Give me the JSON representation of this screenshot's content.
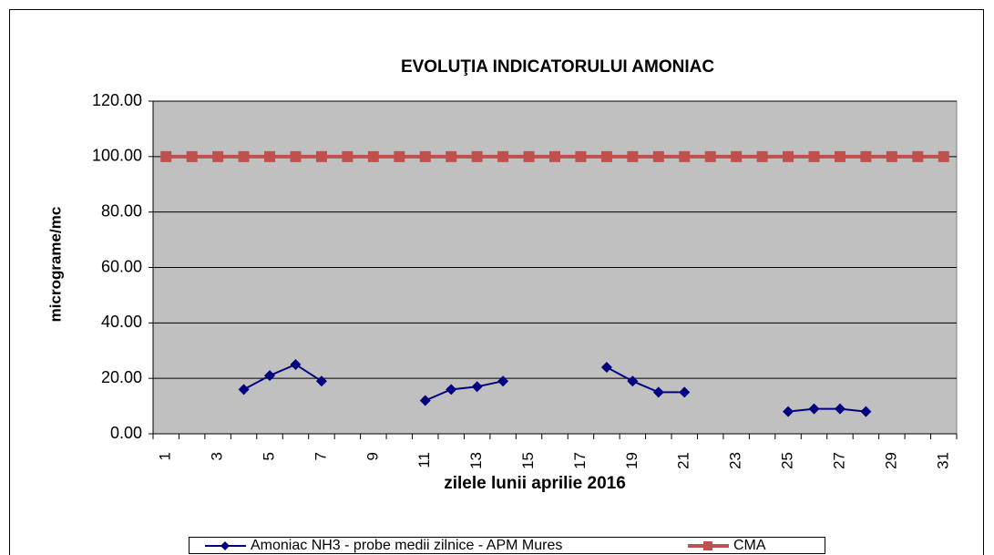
{
  "chart_data": {
    "type": "line",
    "title": "EVOLUŢIA INDICATORULUI AMONIAC",
    "x_label": "zilele lunii aprilie 2016",
    "y_label": "micrograme/mc",
    "categories": [
      "1",
      null,
      "3",
      null,
      "5",
      null,
      "7",
      null,
      "9",
      null,
      "11",
      null,
      "13",
      null,
      "15",
      null,
      "17",
      null,
      "19",
      null,
      "21",
      null,
      "23",
      null,
      "25",
      null,
      "27",
      null,
      "29",
      null,
      "31"
    ],
    "series": [
      {
        "name": "Amoniac NH3 - probe medii zilnice - APM Mures",
        "color": "#000080",
        "marker": "diamond",
        "values": [
          null,
          null,
          null,
          16,
          21,
          25,
          19,
          null,
          null,
          null,
          12,
          16,
          17,
          19,
          null,
          null,
          null,
          24,
          19,
          15,
          15,
          null,
          null,
          null,
          8,
          9,
          9,
          8,
          null,
          null,
          null
        ]
      },
      {
        "name": "CMA",
        "color": "#c0504d",
        "marker": "square",
        "values": [
          100,
          100,
          100,
          100,
          100,
          100,
          100,
          100,
          100,
          100,
          100,
          100,
          100,
          100,
          100,
          100,
          100,
          100,
          100,
          100,
          100,
          100,
          100,
          100,
          100,
          100,
          100,
          100,
          100,
          100,
          100
        ]
      }
    ],
    "ylim": [
      0,
      120
    ],
    "yticks": [
      {
        "value": 0,
        "label": "0.00"
      },
      {
        "value": 20,
        "label": "20.00"
      },
      {
        "value": 40,
        "label": "40.00"
      },
      {
        "value": 60,
        "label": "60.00"
      },
      {
        "value": 80,
        "label": "80.00"
      },
      {
        "value": 100,
        "label": "100.00"
      },
      {
        "value": 120,
        "label": "120.00"
      }
    ],
    "grid": true,
    "plot_background": "#c0c0c0",
    "legend": "bottom"
  }
}
